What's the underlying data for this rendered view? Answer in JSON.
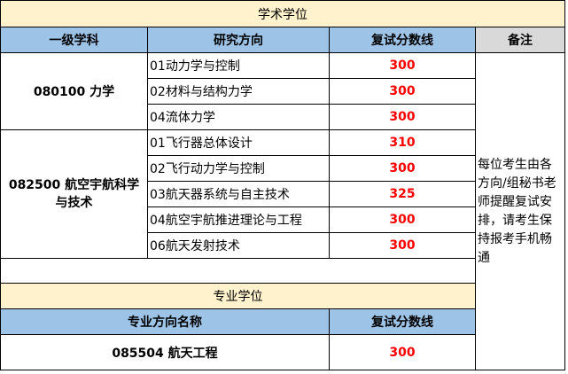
{
  "academic": {
    "title": "学术学位",
    "headers": [
      "一级学科",
      "研究方向",
      "复试分数线",
      "备注"
    ],
    "groups": [
      {
        "discipline": "080100 力学",
        "rows": [
          {
            "direction": "01动力学与控制",
            "score": "300"
          },
          {
            "direction": "02材料与结构力学",
            "score": "300"
          },
          {
            "direction": "04流体力学",
            "score": "300"
          }
        ]
      },
      {
        "discipline": "082500 航空宇航科学与技术",
        "rows": [
          {
            "direction": "01飞行器总体设计",
            "score": "310"
          },
          {
            "direction": "02飞行动力学与控制",
            "score": "300"
          },
          {
            "direction": "03航天器系统与自主技术",
            "score": "325"
          },
          {
            "direction": "04航空宇航推进理论与工程",
            "score": "300"
          },
          {
            "direction": "06航天发射技术",
            "score": "300"
          }
        ]
      }
    ],
    "remark": "每位考生由各方向/组秘书老师提醒复试安排，请考生保持报考手机畅通"
  },
  "professional": {
    "title": "专业学位",
    "headers": [
      "专业方向名称",
      "复试分数线"
    ],
    "rows": [
      {
        "name": "085504 航天工程",
        "score": "300"
      }
    ]
  },
  "colors": {
    "title_bg": "#fff2cc",
    "header_bg": "#9dc3e6",
    "remark_header_bg": "#d9d9d9",
    "score": "#ff0000"
  }
}
